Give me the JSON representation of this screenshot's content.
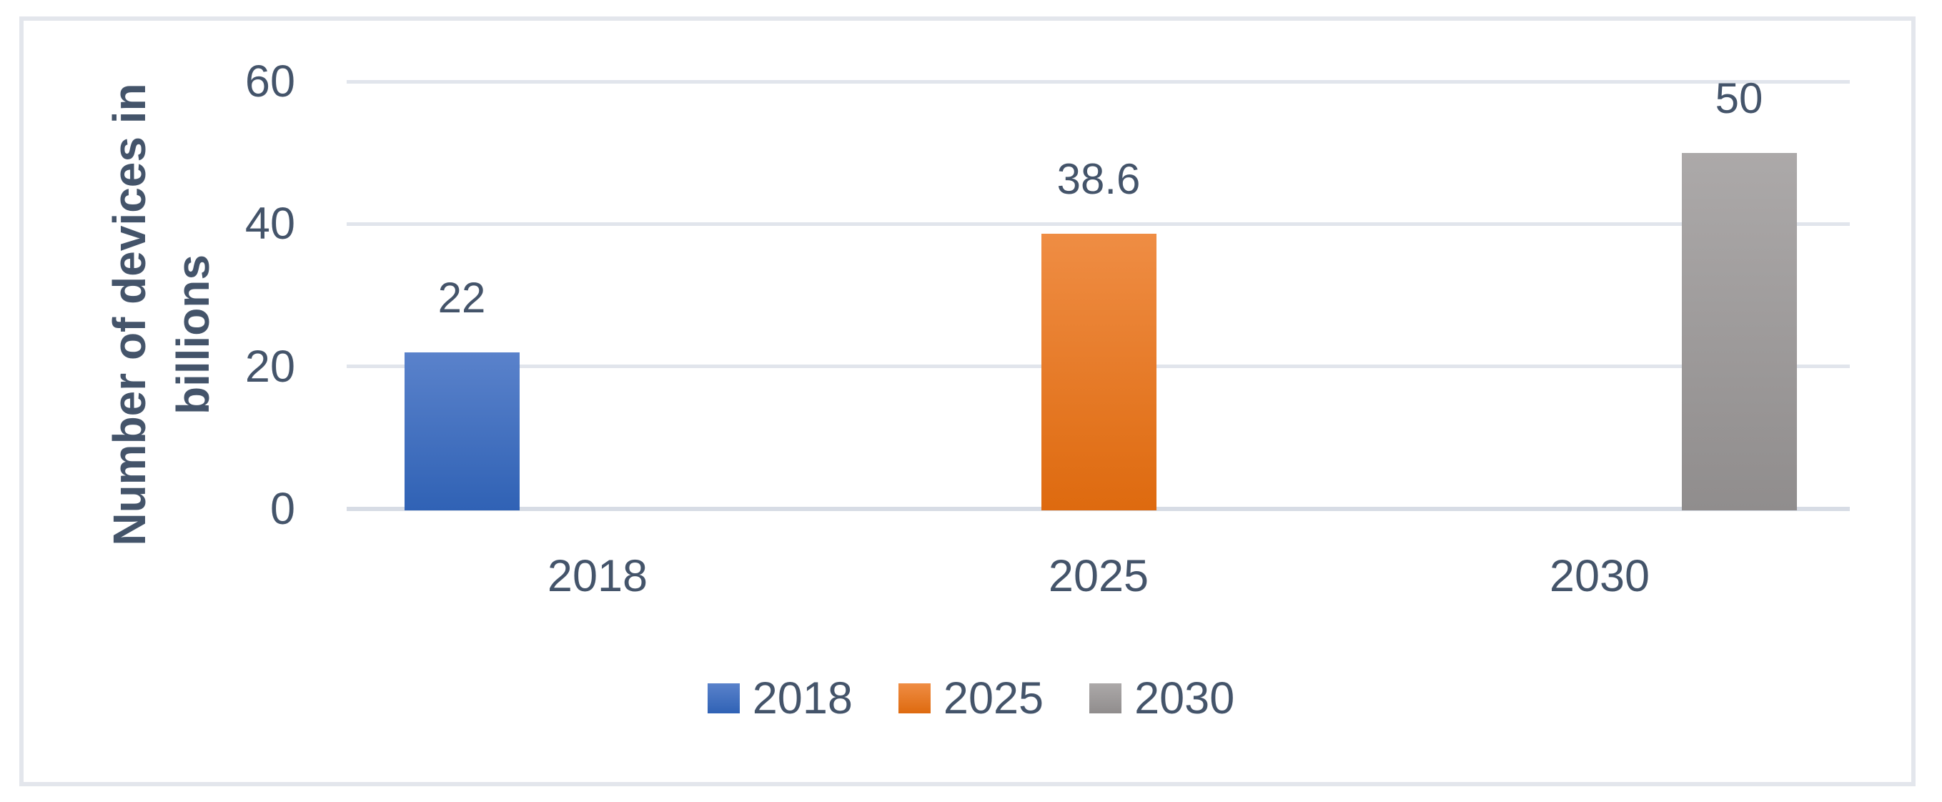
{
  "chart_data": {
    "type": "bar",
    "title": "",
    "categories": [
      "2018",
      "2025",
      "2030"
    ],
    "series": [
      {
        "name": "2018",
        "values": [
          22,
          null,
          null
        ]
      },
      {
        "name": "2025",
        "values": [
          null,
          38.6,
          null
        ]
      },
      {
        "name": "2030",
        "values": [
          null,
          null,
          50
        ]
      }
    ],
    "bars": [
      {
        "series": "2018",
        "category": "2018",
        "value": 22,
        "label": "22"
      },
      {
        "series": "2025",
        "category": "2025",
        "value": 38.6,
        "label": "38.6"
      },
      {
        "series": "2030",
        "category": "2030",
        "value": 50,
        "label": "50"
      }
    ],
    "xlabel": "",
    "ylabel": "Number of devices in billions",
    "ylabel_lines": [
      "Number of devices in",
      "billions"
    ],
    "yticks": [
      "0",
      "20",
      "40",
      "60"
    ],
    "ylim": [
      0,
      60
    ],
    "grid": true,
    "legend": [
      "2018",
      "2025",
      "2030"
    ],
    "legend_position": "bottom"
  },
  "style": {
    "text_color": "#44546A",
    "gridline_color": "#E1E5EC",
    "axis_line_color": "#D7DCE5",
    "frame_border_color": "#E3E6EC",
    "background": "#FFFFFF",
    "series_colors": {
      "2018": {
        "top": "#5A82CB",
        "bottom": "#3062B5"
      },
      "2025": {
        "top": "#EF8D44",
        "bottom": "#DE6A0F"
      },
      "2030": {
        "top": "#ACA9A9",
        "bottom": "#908D8D"
      }
    }
  }
}
